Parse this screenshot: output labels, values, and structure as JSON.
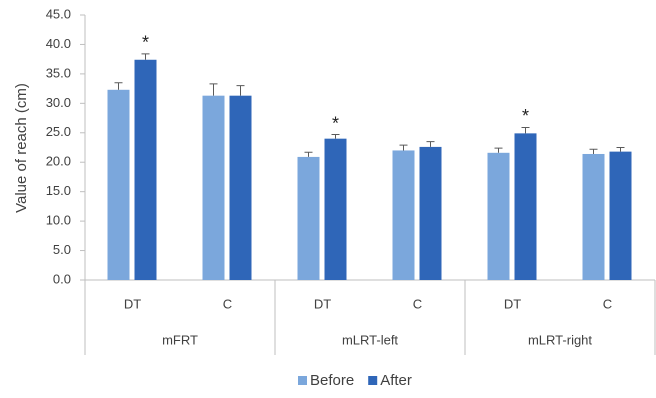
{
  "chart_data": {
    "type": "bar",
    "y_label": "Value of reach (cm)",
    "groups": [
      {
        "name": "mFRT",
        "categories": [
          "DT",
          "C"
        ]
      },
      {
        "name": "mLRT-left",
        "categories": [
          "DT",
          "C"
        ]
      },
      {
        "name": "mLRT-right",
        "categories": [
          "DT",
          "C"
        ]
      }
    ],
    "series": [
      {
        "name": "Before",
        "color": "#7ba7dc",
        "values": [
          32.3,
          31.3,
          20.9,
          22.0,
          21.6,
          21.4
        ],
        "errors": [
          1.2,
          2.0,
          0.8,
          0.9,
          0.8,
          0.8
        ]
      },
      {
        "name": "After",
        "color": "#2f66b8",
        "values": [
          37.4,
          31.3,
          24.0,
          22.6,
          24.9,
          21.8
        ],
        "errors": [
          1.0,
          1.7,
          0.7,
          0.9,
          1.0,
          0.7
        ]
      }
    ],
    "annotations": [
      {
        "text": "*",
        "series": "After",
        "group": "mFRT",
        "category": "DT"
      },
      {
        "text": "*",
        "series": "After",
        "group": "mLRT-left",
        "category": "DT"
      },
      {
        "text": "*",
        "series": "After",
        "group": "mLRT-right",
        "category": "DT"
      }
    ],
    "ylim": [
      0,
      45
    ],
    "yticks": [
      {
        "value": 0,
        "label": "0.0"
      },
      {
        "value": 5,
        "label": "5.0"
      },
      {
        "value": 10,
        "label": "10.0"
      },
      {
        "value": 15,
        "label": "15.0"
      },
      {
        "value": 20,
        "label": "20.0"
      },
      {
        "value": 25,
        "label": "25.0"
      },
      {
        "value": 30,
        "label": "30.0"
      },
      {
        "value": 35,
        "label": "35.0"
      },
      {
        "value": 40,
        "label": "40.0"
      },
      {
        "value": 45,
        "label": "45.0"
      }
    ],
    "grid": false,
    "legend": "bottom"
  }
}
